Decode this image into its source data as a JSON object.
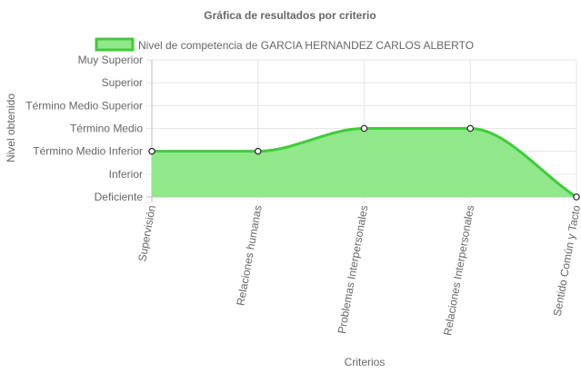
{
  "chart_data": {
    "type": "area",
    "title": "Gráfica de resultados por criterio",
    "xlabel": "Criterios",
    "ylabel": "Nivel obtenido",
    "categories": [
      "Supervisión",
      "Relaciones humanas",
      "Problemas Interpersonales",
      "Relaciones Interpersonales",
      "Sentido Común y Tacto"
    ],
    "y_levels": [
      "Deficiente",
      "Inferior",
      "Término Medio Inferior",
      "Término Medio",
      "Término Medio Superior",
      "Superior",
      "Muy Superior"
    ],
    "ylim": [
      0,
      6
    ],
    "series": [
      {
        "name": "Nivel de competencia de GARCIA HERNANDEZ CARLOS ALBERTO",
        "values": [
          2,
          2,
          3,
          3,
          0
        ]
      }
    ],
    "colors": {
      "fill": "#90e88a",
      "line": "#3fcc3a",
      "point_fill": "#ffffff",
      "point_stroke": "#222222",
      "grid": "#e6e6e6"
    },
    "grid": true,
    "legend_position": "top"
  }
}
